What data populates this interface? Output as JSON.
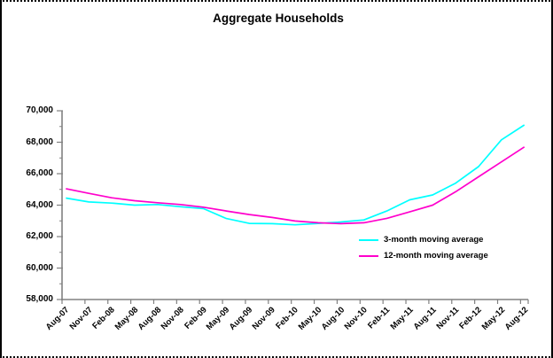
{
  "chart": {
    "title": "Aggregate Households",
    "legend": [
      {
        "label": "3-month moving average",
        "color": "#00FFFF"
      },
      {
        "label": "12-month moving average",
        "color": "#FF00CC"
      }
    ],
    "axis_color": "#808080",
    "text_color": "#000000"
  },
  "chart_data": {
    "type": "line",
    "title": "Aggregate Households",
    "categories": [
      "Aug-07",
      "Nov-07",
      "Feb-08",
      "May-08",
      "Aug-08",
      "Nov-08",
      "Feb-09",
      "May-09",
      "Aug-09",
      "Nov-09",
      "Feb-10",
      "May-10",
      "Aug-10",
      "Nov-10",
      "Feb-11",
      "May-11",
      "Aug-11",
      "Nov-11",
      "Feb-12",
      "May-12",
      "Aug-12"
    ],
    "series": [
      {
        "name": "3-month moving average",
        "color": "#00FFFF",
        "values": [
          64450,
          64200,
          64130,
          64000,
          64040,
          63900,
          63780,
          63150,
          62840,
          62820,
          62750,
          62840,
          62930,
          63060,
          63630,
          64340,
          64650,
          65400,
          66450,
          68150,
          69100
        ]
      },
      {
        "name": "12-month moving average",
        "color": "#FF00CC",
        "values": [
          65050,
          64750,
          64470,
          64280,
          64150,
          64040,
          63870,
          63630,
          63400,
          63215,
          62990,
          62880,
          62820,
          62880,
          63160,
          63570,
          64000,
          64850,
          65800,
          66750,
          67700
        ]
      }
    ],
    "ylim": [
      58000,
      70000
    ],
    "y_tick_step": 2000,
    "y_tick_labels": [
      "58,000",
      "60,000",
      "62,000",
      "64,000",
      "66,000",
      "68,000",
      "70,000"
    ],
    "grid": "off",
    "legend_position": "inside-right"
  }
}
